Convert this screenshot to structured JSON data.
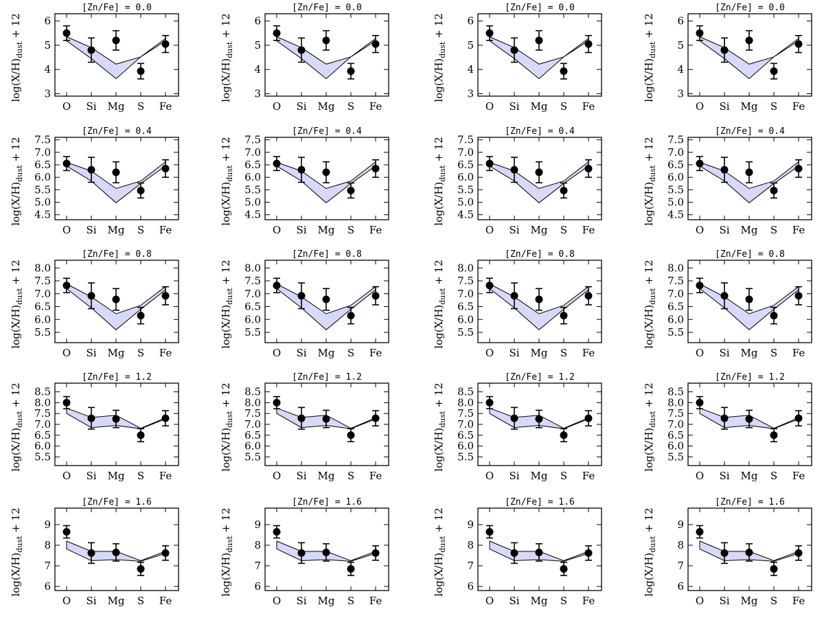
{
  "chart_data": {
    "type": "scatter",
    "layout": "5 rows x 4 columns of identical panels per row",
    "ylabel": "log(X/H)",
    "ylabel_subscript": "dust",
    "ylabel_suffix": "+ 12",
    "categories": [
      "O",
      "Si",
      "Mg",
      "S",
      "Fe"
    ],
    "rows": [
      {
        "title": "[Zn/Fe] = 0.0",
        "ylim": [
          2.9,
          6.3
        ],
        "yticks": [
          "3",
          "4",
          "5",
          "6"
        ],
        "ytick_values": [
          3,
          4,
          5,
          6
        ],
        "points": [
          5.5,
          4.8,
          5.2,
          3.93,
          5.05
        ],
        "errors": [
          0.3,
          0.5,
          0.4,
          0.32,
          0.35
        ],
        "band_upper": [
          5.35,
          4.9,
          4.22,
          4.52,
          5.28
        ],
        "band_lower": [
          5.18,
          4.45,
          3.62,
          4.52,
          5.18
        ]
      },
      {
        "title": "[Zn/Fe] = 0.4",
        "ylim": [
          4.3,
          7.6
        ],
        "yticks": [
          "4.5",
          "5.0",
          "5.5",
          "6.0",
          "6.5",
          "7.0",
          "7.5"
        ],
        "ytick_values": [
          4.5,
          5.0,
          5.5,
          6.0,
          6.5,
          7.0,
          7.5
        ],
        "points": [
          6.55,
          6.3,
          6.2,
          5.47,
          6.35
        ],
        "errors": [
          0.28,
          0.5,
          0.42,
          0.3,
          0.35
        ],
        "band_upper": [
          6.6,
          6.25,
          5.55,
          5.85,
          6.62
        ],
        "band_lower": [
          6.45,
          5.85,
          4.98,
          5.75,
          6.45
        ]
      },
      {
        "title": "[Zn/Fe] = 0.8",
        "ylim": [
          5.1,
          8.3
        ],
        "yticks": [
          "5.5",
          "6.0",
          "6.5",
          "7.0",
          "7.5",
          "8.0"
        ],
        "ytick_values": [
          5.5,
          6.0,
          6.5,
          7.0,
          7.5,
          8.0
        ],
        "points": [
          7.32,
          6.92,
          6.78,
          6.15,
          6.92
        ],
        "errors": [
          0.28,
          0.5,
          0.42,
          0.32,
          0.35
        ],
        "band_upper": [
          7.38,
          6.88,
          6.22,
          6.55,
          7.28
        ],
        "band_lower": [
          7.2,
          6.45,
          5.6,
          6.4,
          7.15
        ]
      },
      {
        "title": "[Zn/Fe] = 1.2",
        "ylim": [
          5.1,
          8.9
        ],
        "yticks": [
          "5.5",
          "6.0",
          "6.5",
          "7.0",
          "7.5",
          "8.0",
          "8.5"
        ],
        "ytick_values": [
          5.5,
          6.0,
          6.5,
          7.0,
          7.5,
          8.0,
          8.5
        ],
        "points": [
          8.0,
          7.28,
          7.25,
          6.5,
          7.28
        ],
        "errors": [
          0.28,
          0.5,
          0.4,
          0.3,
          0.35
        ],
        "band_upper": [
          7.75,
          7.32,
          7.42,
          6.82,
          7.3
        ],
        "band_lower": [
          7.5,
          6.85,
          6.95,
          6.8,
          7.25
        ]
      },
      {
        "title": "[Zn/Fe] = 1.6",
        "ylim": [
          5.8,
          9.8
        ],
        "yticks": [
          "6",
          "7",
          "8",
          "9"
        ],
        "ytick_values": [
          6,
          7,
          8,
          9
        ],
        "points": [
          8.65,
          7.62,
          7.65,
          6.85,
          7.62
        ],
        "errors": [
          0.3,
          0.5,
          0.42,
          0.32,
          0.35
        ],
        "band_upper": [
          8.2,
          7.7,
          7.7,
          7.25,
          7.7
        ],
        "band_lower": [
          7.82,
          7.25,
          7.3,
          7.22,
          7.6
        ]
      }
    ]
  }
}
